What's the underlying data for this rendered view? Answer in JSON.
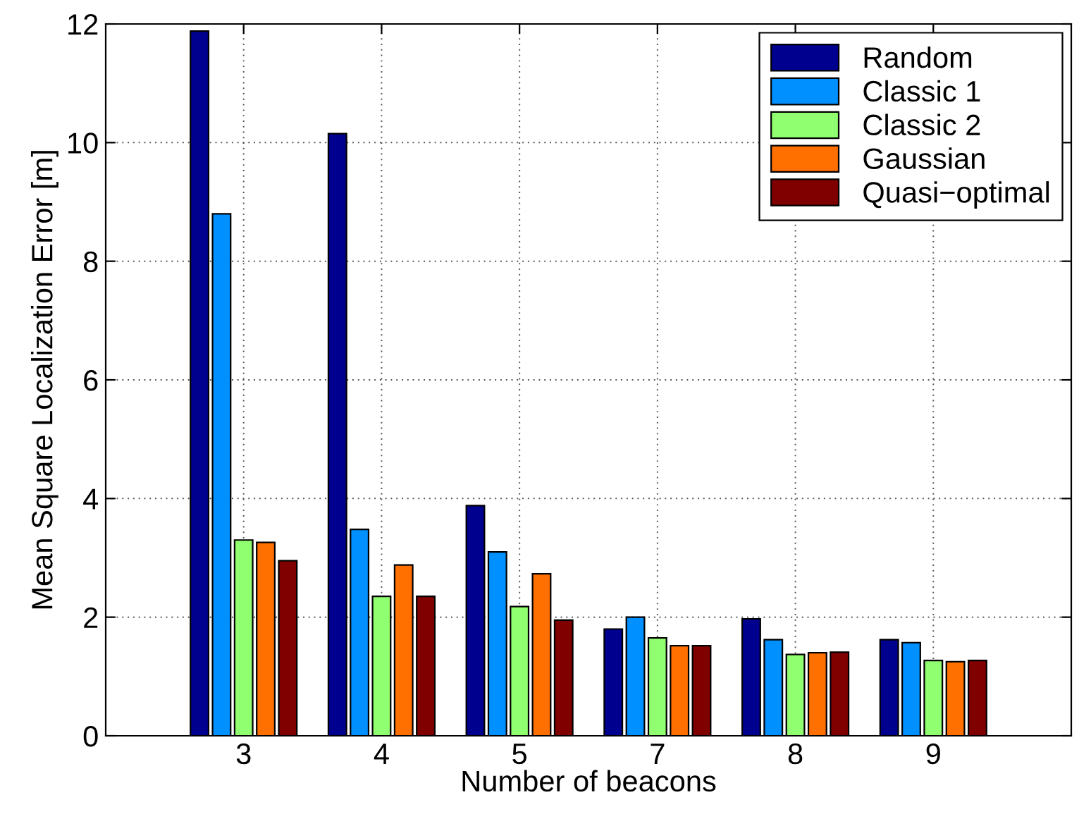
{
  "chart_data": {
    "type": "bar",
    "xlabel": "Number of beacons",
    "ylabel": "Mean Square Localization Error [m]",
    "categories": [
      "3",
      "4",
      "5",
      "7",
      "8",
      "9"
    ],
    "series": [
      {
        "name": "Random",
        "color": "#00008f",
        "values": [
          11.88,
          10.15,
          3.88,
          1.8,
          1.97,
          1.62
        ]
      },
      {
        "name": "Classic 1",
        "color": "#0090ff",
        "values": [
          8.8,
          3.48,
          3.1,
          2.0,
          1.62,
          1.57
        ]
      },
      {
        "name": "Classic 2",
        "color": "#90ff70",
        "values": [
          3.3,
          2.35,
          2.18,
          1.65,
          1.37,
          1.27
        ]
      },
      {
        "name": "Gaussian",
        "color": "#ff7000",
        "values": [
          3.26,
          2.88,
          2.73,
          1.52,
          1.4,
          1.25
        ]
      },
      {
        "name": "Quasi−optimal",
        "color": "#800000",
        "values": [
          2.95,
          2.35,
          1.95,
          1.52,
          1.41,
          1.27
        ]
      }
    ],
    "ylim": [
      0,
      12
    ],
    "yticks": [
      0,
      2,
      4,
      6,
      8,
      10,
      12
    ],
    "grid": true,
    "legend": "top right"
  }
}
